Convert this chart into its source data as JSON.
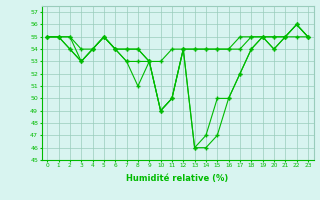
{
  "x": [
    0,
    1,
    2,
    3,
    4,
    5,
    6,
    7,
    8,
    9,
    10,
    11,
    12,
    13,
    14,
    15,
    16,
    17,
    18,
    19,
    20,
    21,
    22,
    23
  ],
  "line1": [
    55,
    55,
    55,
    54,
    54,
    55,
    54,
    54,
    54,
    53,
    49,
    50,
    54,
    54,
    54,
    54,
    54,
    54,
    55,
    55,
    55,
    55,
    56,
    55
  ],
  "line2": [
    55,
    55,
    55,
    53,
    54,
    55,
    54,
    53,
    53,
    53,
    49,
    50,
    54,
    46,
    46,
    47,
    50,
    52,
    54,
    55,
    54,
    55,
    56,
    55
  ],
  "line3": [
    55,
    55,
    54,
    53,
    54,
    55,
    54,
    54,
    54,
    53,
    53,
    54,
    54,
    54,
    54,
    54,
    54,
    55,
    55,
    55,
    55,
    55,
    55,
    55
  ],
  "line4": [
    55,
    55,
    54,
    53,
    54,
    55,
    54,
    53,
    51,
    53,
    49,
    50,
    54,
    46,
    47,
    50,
    50,
    52,
    54,
    55,
    54,
    55,
    56,
    55
  ],
  "color": "#00bb00",
  "bg_color": "#d8f4f0",
  "grid_color": "#99ccbb",
  "xlabel": "Humidité relative (%)",
  "xlim": [
    -0.5,
    23.5
  ],
  "ylim": [
    45,
    57.5
  ],
  "yticks": [
    45,
    46,
    47,
    48,
    49,
    50,
    51,
    52,
    53,
    54,
    55,
    56,
    57
  ],
  "xticks": [
    0,
    1,
    2,
    3,
    4,
    5,
    6,
    7,
    8,
    9,
    10,
    11,
    12,
    13,
    14,
    15,
    16,
    17,
    18,
    19,
    20,
    21,
    22,
    23
  ]
}
